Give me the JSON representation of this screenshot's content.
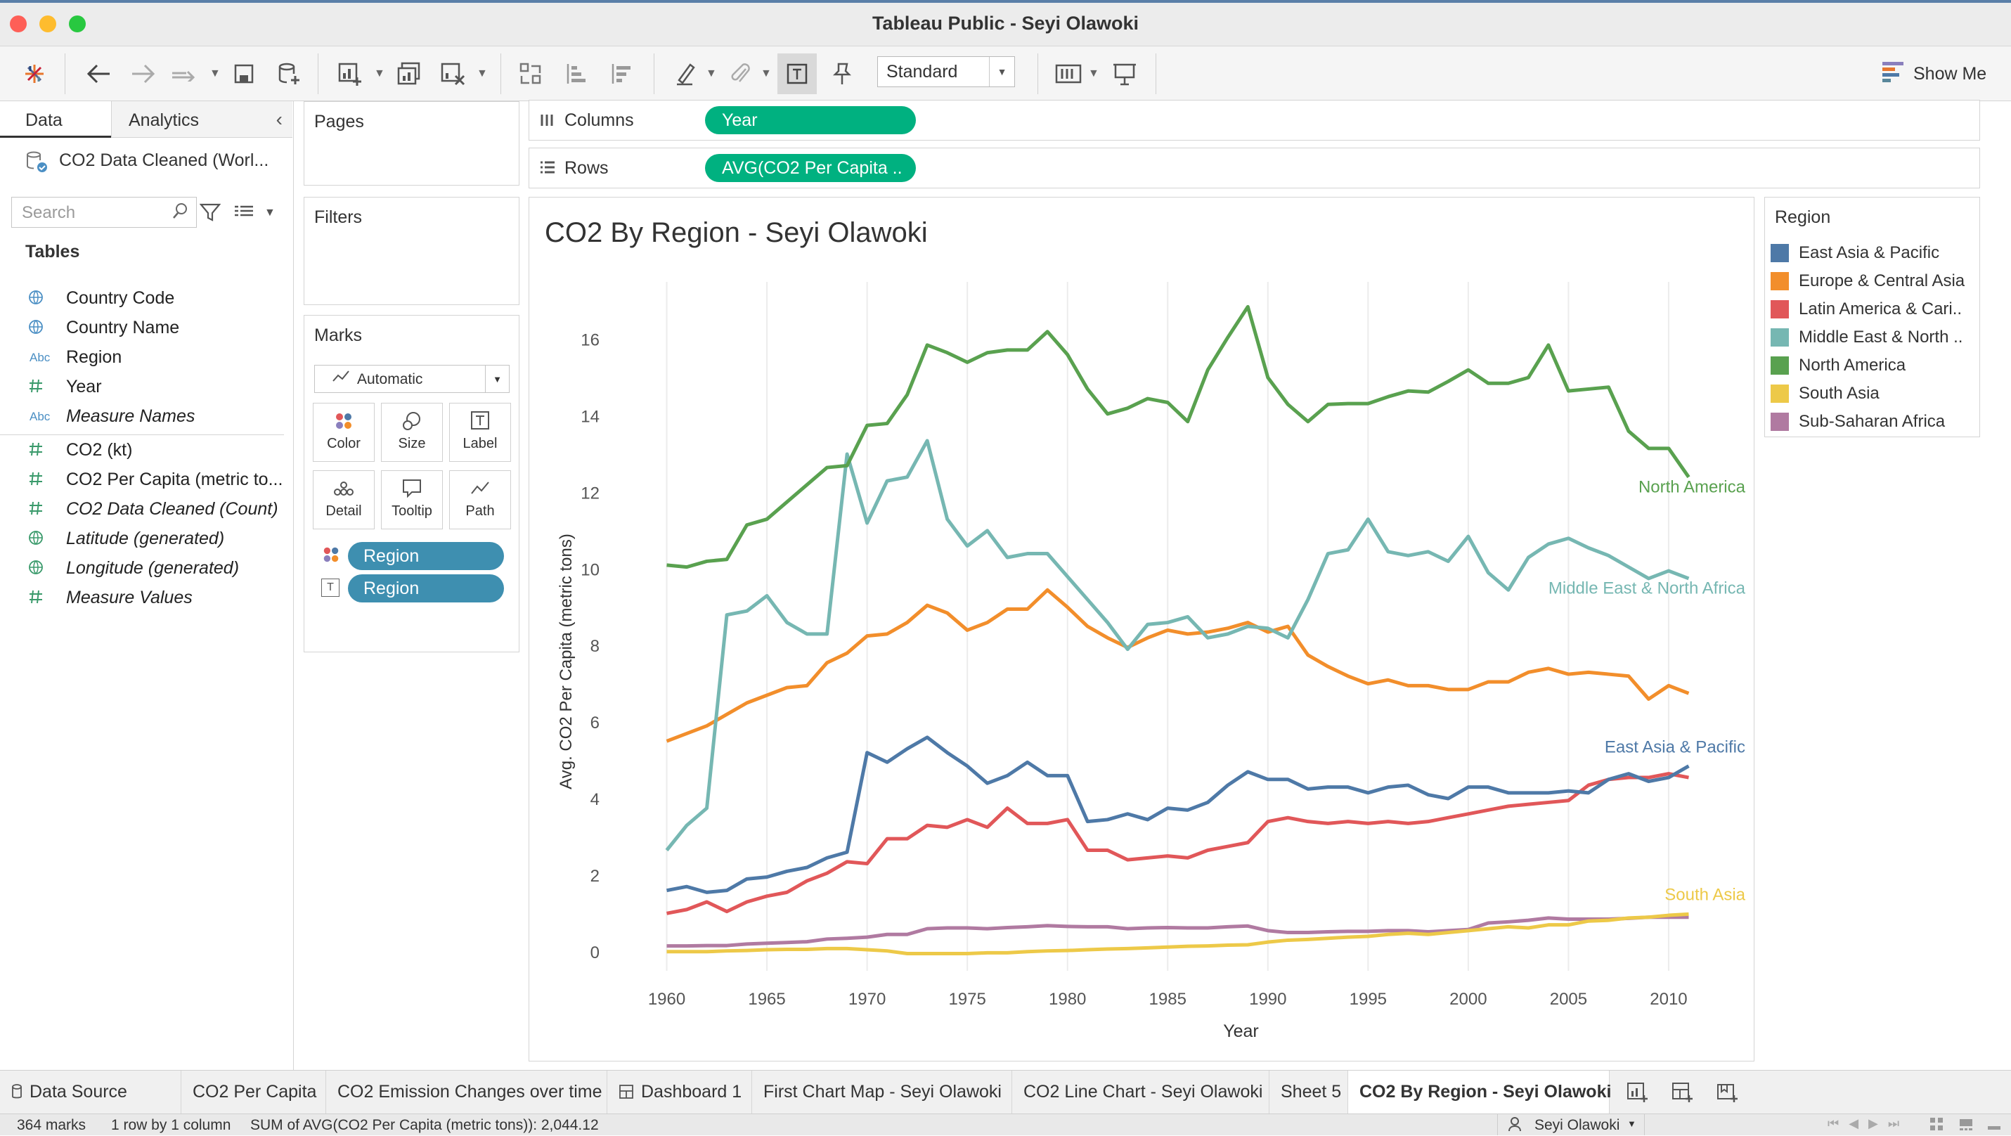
{
  "window": {
    "title": "Tableau Public - Seyi Olawoki"
  },
  "toolbar": {
    "fit_mode": "Standard",
    "show_me": "Show Me"
  },
  "data_pane": {
    "tabs": [
      "Data",
      "Analytics"
    ],
    "datasource": "CO2 Data Cleaned (Worl...",
    "search_placeholder": "Search",
    "tables_heading": "Tables",
    "fields": [
      {
        "name": "Country Code",
        "icon": "globe-icon",
        "italic": false
      },
      {
        "name": "Country Name",
        "icon": "globe-icon",
        "italic": false
      },
      {
        "name": "Region",
        "icon": "abc-icon",
        "italic": false
      },
      {
        "name": "Year",
        "icon": "hash-icon",
        "italic": false
      },
      {
        "name": "Measure Names",
        "icon": "abc-icon",
        "italic": true
      },
      {
        "name": "CO2 (kt)",
        "icon": "hash-icon",
        "italic": false
      },
      {
        "name": "CO2 Per Capita (metric to...",
        "icon": "hash-icon",
        "italic": false
      },
      {
        "name": "CO2 Data Cleaned (Count)",
        "icon": "hash-icon",
        "italic": true
      },
      {
        "name": "Latitude (generated)",
        "icon": "globe-icon",
        "italic": true
      },
      {
        "name": "Longitude (generated)",
        "icon": "globe-icon",
        "italic": true
      },
      {
        "name": "Measure Values",
        "icon": "hash-icon",
        "italic": true
      }
    ],
    "abc_glyph": "Abc"
  },
  "cards": {
    "pages": "Pages",
    "filters": "Filters",
    "marks": "Marks",
    "mark_type": "Automatic",
    "mark_buttons": [
      "Color",
      "Size",
      "Label",
      "Detail",
      "Tooltip",
      "Path"
    ],
    "mark_pills": [
      "Region",
      "Region"
    ],
    "label_glyph": "T"
  },
  "shelves": {
    "columns_label": "Columns",
    "columns_pill": "Year",
    "rows_label": "Rows",
    "rows_pill": "AVG(CO2 Per Capita .."
  },
  "sheet": {
    "title": "CO2 By Region - Seyi Olawoki"
  },
  "legend": {
    "title": "Region",
    "items": [
      {
        "label": "East Asia & Pacific",
        "color": "#4e79a7"
      },
      {
        "label": "Europe & Central Asia",
        "color": "#f28e2b"
      },
      {
        "label": "Latin America & Cari..",
        "color": "#e15759"
      },
      {
        "label": "Middle East & North ..",
        "color": "#76b7b2"
      },
      {
        "label": "North America",
        "color": "#59a14f"
      },
      {
        "label": "South Asia",
        "color": "#edc948"
      },
      {
        "label": "Sub-Saharan Africa",
        "color": "#b07aa1"
      }
    ]
  },
  "chart_data": {
    "type": "line",
    "title": "CO2 By Region - Seyi Olawoki",
    "xlabel": "Year",
    "ylabel": "Avg. CO2 Per Capita (metric tons)",
    "xlim": [
      1957,
      2014
    ],
    "ylim": [
      -0.5,
      17.5
    ],
    "xticks": [
      1960,
      1965,
      1970,
      1975,
      1980,
      1985,
      1990,
      1995,
      2000,
      2005,
      2010
    ],
    "yticks": [
      0,
      2,
      4,
      6,
      8,
      10,
      12,
      14,
      16
    ],
    "grid": "vertical",
    "x": [
      1960,
      1961,
      1962,
      1963,
      1964,
      1965,
      1966,
      1967,
      1968,
      1969,
      1970,
      1971,
      1972,
      1973,
      1974,
      1975,
      1976,
      1977,
      1978,
      1979,
      1980,
      1981,
      1982,
      1983,
      1984,
      1985,
      1986,
      1987,
      1988,
      1989,
      1990,
      1991,
      1992,
      1993,
      1994,
      1995,
      1996,
      1997,
      1998,
      1999,
      2000,
      2001,
      2002,
      2003,
      2004,
      2005,
      2006,
      2007,
      2008,
      2009,
      2010,
      2011
    ],
    "series": [
      {
        "name": "North America",
        "color": "#59a14f",
        "end_label": true,
        "values": [
          10.1,
          10.05,
          10.2,
          10.25,
          11.15,
          11.3,
          11.75,
          12.2,
          12.65,
          12.7,
          13.75,
          13.8,
          14.55,
          15.85,
          15.65,
          15.4,
          15.65,
          15.72,
          15.72,
          16.2,
          15.6,
          14.7,
          14.05,
          14.2,
          14.45,
          14.35,
          13.85,
          15.2,
          16.05,
          16.85,
          15.0,
          14.3,
          13.85,
          14.3,
          14.32,
          14.32,
          14.5,
          14.65,
          14.62,
          14.9,
          15.2,
          14.85,
          14.85,
          15.0,
          15.85,
          14.65,
          14.7,
          14.75,
          13.6,
          13.15,
          13.15,
          12.4
        ]
      },
      {
        "name": "Middle East & North Africa",
        "color": "#76b7b2",
        "end_label": true,
        "values": [
          2.65,
          3.3,
          3.75,
          8.8,
          8.9,
          9.3,
          8.6,
          8.3,
          8.3,
          13.0,
          11.2,
          12.3,
          12.4,
          13.35,
          11.3,
          10.6,
          11.0,
          10.3,
          10.4,
          10.4,
          9.8,
          9.2,
          8.6,
          7.9,
          8.55,
          8.6,
          8.75,
          8.2,
          8.3,
          8.5,
          8.45,
          8.2,
          9.2,
          10.4,
          10.5,
          11.3,
          10.45,
          10.35,
          10.45,
          10.2,
          10.85,
          9.9,
          9.45,
          10.3,
          10.65,
          10.8,
          10.55,
          10.35,
          10.05,
          9.75,
          9.95,
          9.75
        ]
      },
      {
        "name": "Europe & Central Asia",
        "color": "#f28e2b",
        "end_label": false,
        "values": [
          5.5,
          5.7,
          5.9,
          6.2,
          6.5,
          6.7,
          6.9,
          6.95,
          7.55,
          7.8,
          8.25,
          8.3,
          8.6,
          9.05,
          8.85,
          8.4,
          8.6,
          8.95,
          8.95,
          9.45,
          9.0,
          8.5,
          8.2,
          7.95,
          8.2,
          8.4,
          8.3,
          8.35,
          8.45,
          8.6,
          8.35,
          8.5,
          7.75,
          7.45,
          7.2,
          7.0,
          7.1,
          6.95,
          6.95,
          6.85,
          6.85,
          7.05,
          7.05,
          7.3,
          7.4,
          7.25,
          7.3,
          7.25,
          7.2,
          6.6,
          6.95,
          6.75
        ]
      },
      {
        "name": "East Asia & Pacific",
        "color": "#4e79a7",
        "end_label": true,
        "values": [
          1.6,
          1.7,
          1.55,
          1.6,
          1.9,
          1.95,
          2.1,
          2.2,
          2.45,
          2.6,
          5.2,
          4.95,
          5.3,
          5.6,
          5.2,
          4.85,
          4.4,
          4.6,
          4.95,
          4.6,
          4.6,
          3.4,
          3.45,
          3.6,
          3.45,
          3.75,
          3.7,
          3.9,
          4.35,
          4.7,
          4.5,
          4.5,
          4.25,
          4.3,
          4.3,
          4.15,
          4.3,
          4.35,
          4.1,
          4.0,
          4.3,
          4.3,
          4.15,
          4.15,
          4.15,
          4.2,
          4.15,
          4.5,
          4.65,
          4.45,
          4.55,
          4.85
        ]
      },
      {
        "name": "Latin America & Caribbean",
        "color": "#e15759",
        "end_label": false,
        "values": [
          1.0,
          1.1,
          1.3,
          1.05,
          1.3,
          1.45,
          1.55,
          1.85,
          2.05,
          2.35,
          2.3,
          2.95,
          2.95,
          3.3,
          3.25,
          3.45,
          3.25,
          3.75,
          3.35,
          3.35,
          3.45,
          2.65,
          2.65,
          2.4,
          2.45,
          2.5,
          2.45,
          2.65,
          2.75,
          2.85,
          3.4,
          3.5,
          3.4,
          3.35,
          3.4,
          3.35,
          3.4,
          3.35,
          3.4,
          3.5,
          3.6,
          3.7,
          3.8,
          3.85,
          3.9,
          3.95,
          4.35,
          4.5,
          4.55,
          4.55,
          4.65,
          4.55
        ]
      },
      {
        "name": "South Asia",
        "color": "#edc948",
        "end_label": true,
        "values": [
          0.0,
          0.0,
          0.0,
          0.02,
          0.03,
          0.05,
          0.06,
          0.06,
          0.08,
          0.08,
          0.05,
          0.02,
          -0.05,
          -0.05,
          -0.05,
          -0.05,
          -0.03,
          -0.03,
          0.0,
          0.02,
          0.03,
          0.05,
          0.07,
          0.08,
          0.1,
          0.12,
          0.14,
          0.15,
          0.17,
          0.18,
          0.25,
          0.3,
          0.32,
          0.35,
          0.38,
          0.4,
          0.45,
          0.48,
          0.45,
          0.5,
          0.55,
          0.6,
          0.65,
          0.62,
          0.7,
          0.7,
          0.8,
          0.82,
          0.88,
          0.9,
          0.95,
          0.98
        ]
      },
      {
        "name": "Sub-Saharan Africa",
        "color": "#b07aa1",
        "end_label": false,
        "values": [
          0.15,
          0.15,
          0.16,
          0.16,
          0.2,
          0.22,
          0.24,
          0.26,
          0.33,
          0.35,
          0.38,
          0.45,
          0.45,
          0.6,
          0.62,
          0.62,
          0.6,
          0.63,
          0.65,
          0.68,
          0.66,
          0.65,
          0.65,
          0.6,
          0.62,
          0.63,
          0.62,
          0.62,
          0.65,
          0.67,
          0.55,
          0.5,
          0.5,
          0.52,
          0.53,
          0.53,
          0.55,
          0.55,
          0.52,
          0.55,
          0.58,
          0.75,
          0.78,
          0.82,
          0.88,
          0.85,
          0.85,
          0.85,
          0.87,
          0.9,
          0.9,
          0.9
        ]
      }
    ]
  },
  "sheet_tabs": [
    {
      "label": "Data Source",
      "active": false
    },
    {
      "label": "CO2 Per Capita",
      "active": false
    },
    {
      "label": "CO2 Emission Changes over time",
      "active": false
    },
    {
      "label": "Dashboard 1",
      "active": false
    },
    {
      "label": "First Chart Map - Seyi Olawoki",
      "active": false
    },
    {
      "label": "CO2 Line Chart - Seyi Olawoki",
      "active": false
    },
    {
      "label": "Sheet 5",
      "active": false
    },
    {
      "label": "CO2 By Region - Seyi Olawoki",
      "active": true
    }
  ],
  "status": {
    "marks": "364 marks",
    "rows": "1 row by 1 column",
    "sum": "SUM of AVG(CO2 Per Capita (metric tons)): 2,044.12",
    "user": "Seyi Olawoki"
  }
}
